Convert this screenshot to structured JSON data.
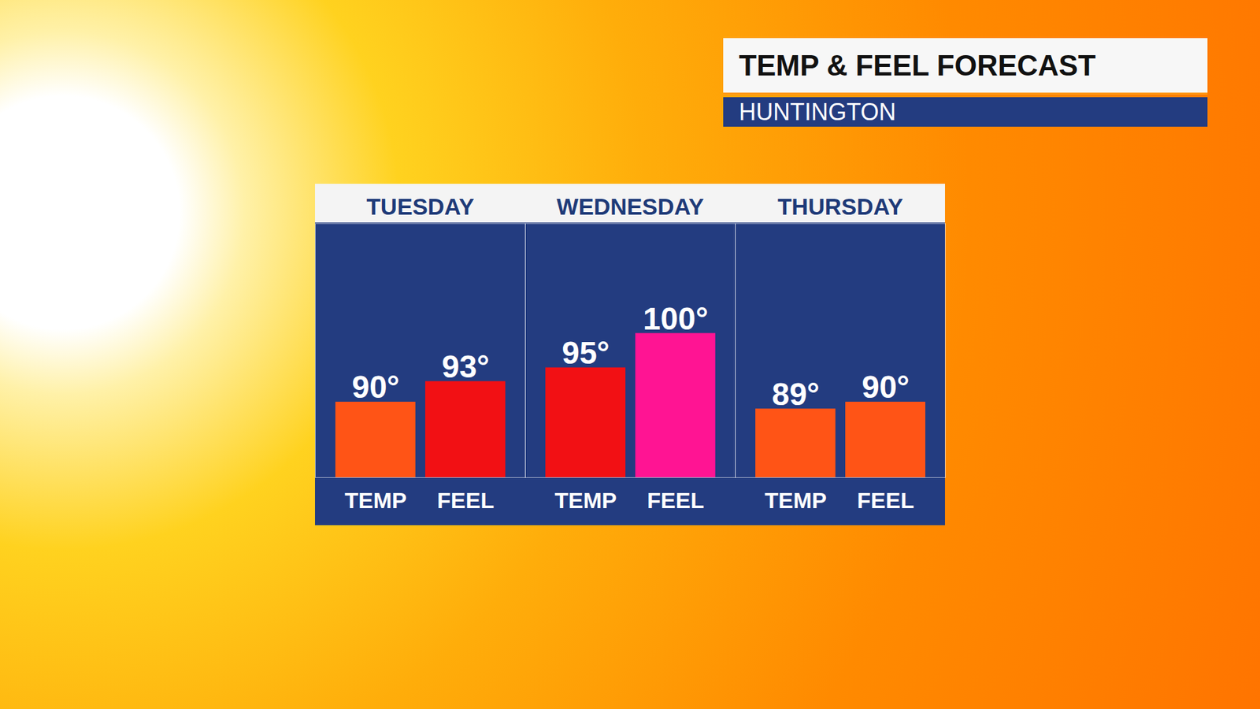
{
  "chart_data": {
    "type": "bar",
    "title": "TEMP & FEEL FORECAST",
    "subtitle": "HUNTINGTON",
    "categories": [
      "TUESDAY",
      "WEDNESDAY",
      "THURSDAY"
    ],
    "series": [
      {
        "name": "TEMP",
        "values": [
          90,
          95,
          89
        ],
        "value_labels": [
          "90°",
          "95°",
          "89°"
        ],
        "colors": [
          "#ff5416",
          "#f21014",
          "#ff5416"
        ]
      },
      {
        "name": "FEEL",
        "values": [
          93,
          100,
          90
        ],
        "value_labels": [
          "93°",
          "100°",
          "90°"
        ],
        "colors": [
          "#f21014",
          "#ff1493",
          "#ff5416"
        ]
      }
    ],
    "ylim": [
      79,
      116
    ],
    "yticks": [],
    "grid": false,
    "data_labels": true,
    "tick_labels": "x"
  }
}
